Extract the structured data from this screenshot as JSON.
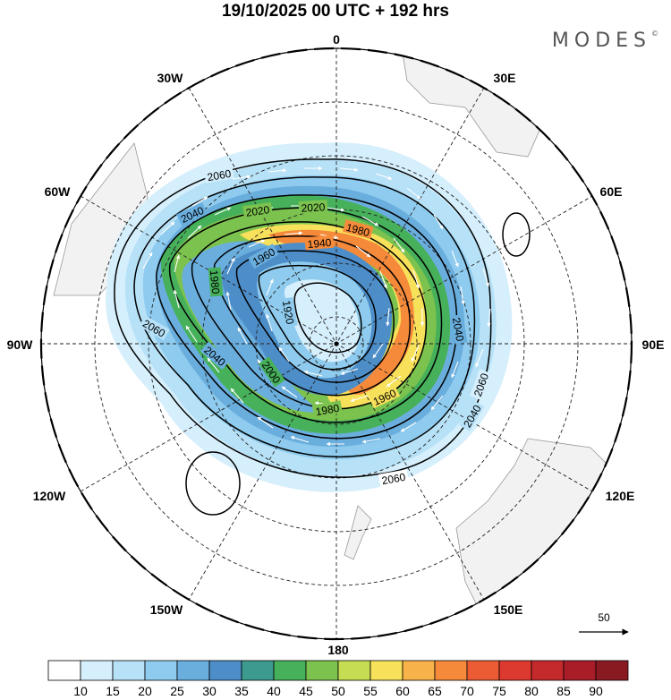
{
  "header": {
    "title": "19/10/2025  00 UTC  + 192 hrs",
    "brand": "MODES",
    "brand_mark": "©"
  },
  "map": {
    "projection": "south-polar-stereographic",
    "longitude_labels": [
      "0",
      "30E",
      "60E",
      "90E",
      "120E",
      "150E",
      "180",
      "150W",
      "120W",
      "90W",
      "60W",
      "30W"
    ],
    "contour_labels": [
      "2060",
      "2040",
      "2020",
      "2020",
      "1940",
      "1960",
      "1980",
      "1980",
      "1920",
      "2040",
      "2060",
      "2040",
      "2000",
      "1980",
      "1960",
      "2040",
      "2060",
      "2060"
    ],
    "vector_reference": "50"
  },
  "colorbar": {
    "ticks": [
      "10",
      "15",
      "20",
      "25",
      "30",
      "35",
      "40",
      "45",
      "50",
      "55",
      "60",
      "65",
      "70",
      "75",
      "80",
      "85",
      "90"
    ],
    "colors": [
      "#ffffff",
      "#d6effc",
      "#b7e1f7",
      "#8ecbee",
      "#6aaede",
      "#4d8ec9",
      "#3d9a8e",
      "#46b05a",
      "#7cc24e",
      "#c6dc52",
      "#f7e05a",
      "#f8b24a",
      "#f58a3a",
      "#ec5c34",
      "#dc3a2e",
      "#c42a2c",
      "#a81d28",
      "#8a1a22"
    ]
  }
}
